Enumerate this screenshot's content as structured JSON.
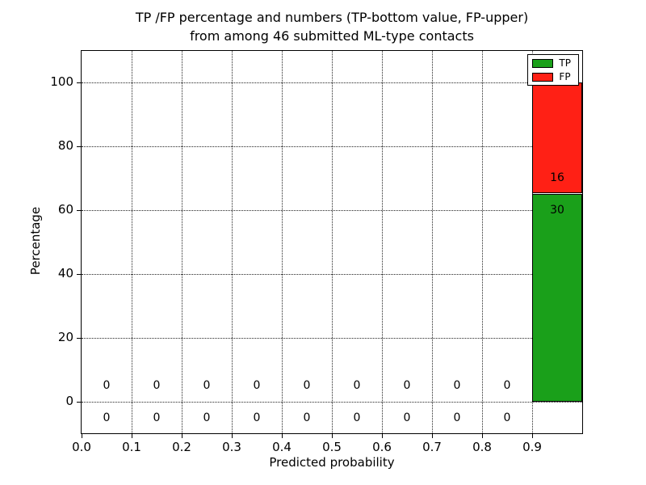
{
  "header": {
    "title_line1": "TP /FP percentage and numbers (TP-bottom value, FP-upper)",
    "title_line2": "from among 46 submitted ML-type contacts"
  },
  "chart_data": {
    "type": "bar",
    "stacked": true,
    "title": "TP /FP percentage and numbers (TP-bottom value, FP-upper) from among 46 submitted ML-type contacts",
    "xlabel": "Predicted probability",
    "ylabel": "Percentage",
    "total_contacts": 46,
    "grid": true,
    "xlim": [
      0.0,
      1.0
    ],
    "ylim": [
      -10,
      110
    ],
    "xticks": [
      {
        "v": 0.0,
        "label": "0.0"
      },
      {
        "v": 0.1,
        "label": "0.1"
      },
      {
        "v": 0.2,
        "label": "0.2"
      },
      {
        "v": 0.3,
        "label": "0.3"
      },
      {
        "v": 0.4,
        "label": "0.4"
      },
      {
        "v": 0.5,
        "label": "0.5"
      },
      {
        "v": 0.6,
        "label": "0.6"
      },
      {
        "v": 0.7,
        "label": "0.7"
      },
      {
        "v": 0.8,
        "label": "0.8"
      },
      {
        "v": 0.9,
        "label": "0.9"
      }
    ],
    "yticks": [
      {
        "v": 0,
        "label": "0"
      },
      {
        "v": 20,
        "label": "20"
      },
      {
        "v": 40,
        "label": "40"
      },
      {
        "v": 60,
        "label": "60"
      },
      {
        "v": 80,
        "label": "80"
      },
      {
        "v": 100,
        "label": "100"
      }
    ],
    "bin_edges": [
      0.0,
      0.1,
      0.2,
      0.3,
      0.4,
      0.5,
      0.6,
      0.7,
      0.8,
      0.9,
      1.0
    ],
    "bin_centers": [
      0.05,
      0.15,
      0.25,
      0.35,
      0.45,
      0.55,
      0.65,
      0.75,
      0.85,
      0.95
    ],
    "series": [
      {
        "name": "TP",
        "color": "#1aa01a",
        "counts": [
          0,
          0,
          0,
          0,
          0,
          0,
          0,
          0,
          0,
          30
        ],
        "pct": [
          0,
          0,
          0,
          0,
          0,
          0,
          0,
          0,
          0,
          65.22
        ]
      },
      {
        "name": "FP",
        "color": "#ff2015",
        "counts": [
          0,
          0,
          0,
          0,
          0,
          0,
          0,
          0,
          0,
          16
        ],
        "pct": [
          0,
          0,
          0,
          0,
          0,
          0,
          0,
          0,
          0,
          34.78
        ]
      }
    ],
    "legend": {
      "position": "upper right",
      "entries": [
        {
          "label": "TP",
          "color": "#1aa01a"
        },
        {
          "label": "FP",
          "color": "#ff2015"
        }
      ]
    }
  }
}
